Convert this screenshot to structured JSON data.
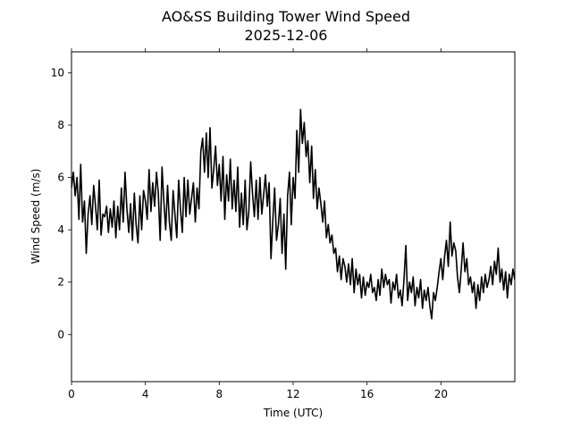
{
  "chart_data": {
    "type": "line",
    "title": "AO&SS Building Tower Wind Speed",
    "subtitle": "2025-12-06",
    "xlabel": "Time (UTC)",
    "ylabel": "Wind Speed (m/s)",
    "xlim": [
      0,
      24
    ],
    "ylim": [
      -1.8,
      10.8
    ],
    "x_ticks": [
      0,
      4,
      8,
      12,
      16,
      20
    ],
    "x_tick_labels": [
      "0",
      "4",
      "8",
      "12",
      "16",
      "20"
    ],
    "y_ticks": [
      0,
      2,
      4,
      6,
      8,
      10
    ],
    "y_tick_labels": [
      "0",
      "2",
      "4",
      "6",
      "8",
      "10"
    ],
    "grid": false,
    "legend": "none",
    "line_color": "#000000",
    "series": [
      {
        "x": [
          0.0,
          0.1,
          0.2,
          0.3,
          0.4,
          0.5,
          0.6,
          0.7,
          0.8,
          0.9,
          1.0,
          1.1,
          1.2,
          1.3,
          1.4,
          1.5,
          1.6,
          1.7,
          1.8,
          1.9,
          2.0,
          2.1,
          2.2,
          2.3,
          2.4,
          2.5,
          2.6,
          2.7,
          2.8,
          2.9,
          3.0,
          3.1,
          3.2,
          3.3,
          3.4,
          3.5,
          3.6,
          3.7,
          3.8,
          3.9,
          4.0,
          4.1,
          4.2,
          4.3,
          4.4,
          4.5,
          4.6,
          4.7,
          4.8,
          4.9,
          5.0,
          5.1,
          5.2,
          5.3,
          5.4,
          5.5,
          5.6,
          5.7,
          5.8,
          5.9,
          6.0,
          6.1,
          6.2,
          6.3,
          6.4,
          6.5,
          6.6,
          6.7,
          6.8,
          6.9,
          7.0,
          7.1,
          7.2,
          7.3,
          7.4,
          7.5,
          7.6,
          7.7,
          7.8,
          7.9,
          8.0,
          8.1,
          8.2,
          8.3,
          8.4,
          8.5,
          8.6,
          8.7,
          8.8,
          8.9,
          9.0,
          9.1,
          9.2,
          9.3,
          9.4,
          9.5,
          9.6,
          9.7,
          9.8,
          9.9,
          10.0,
          10.1,
          10.2,
          10.3,
          10.4,
          10.5,
          10.6,
          10.7,
          10.8,
          10.9,
          11.0,
          11.1,
          11.2,
          11.3,
          11.4,
          11.5,
          11.6,
          11.7,
          11.8,
          11.9,
          12.0,
          12.1,
          12.2,
          12.3,
          12.4,
          12.5,
          12.6,
          12.7,
          12.8,
          12.9,
          13.0,
          13.1,
          13.2,
          13.3,
          13.4,
          13.5,
          13.6,
          13.7,
          13.8,
          13.9,
          14.0,
          14.1,
          14.2,
          14.3,
          14.4,
          14.5,
          14.6,
          14.7,
          14.8,
          14.9,
          15.0,
          15.1,
          15.2,
          15.3,
          15.4,
          15.5,
          15.6,
          15.7,
          15.8,
          15.9,
          16.0,
          16.1,
          16.2,
          16.3,
          16.4,
          16.5,
          16.6,
          16.7,
          16.8,
          16.9,
          17.0,
          17.1,
          17.2,
          17.3,
          17.4,
          17.5,
          17.6,
          17.7,
          17.8,
          17.9,
          18.0,
          18.1,
          18.2,
          18.3,
          18.4,
          18.5,
          18.6,
          18.7,
          18.8,
          18.9,
          19.0,
          19.1,
          19.2,
          19.3,
          19.4,
          19.5,
          19.6,
          19.7,
          19.8,
          19.9,
          20.0,
          20.1,
          20.2,
          20.3,
          20.4,
          20.5,
          20.6,
          20.7,
          20.8,
          20.9,
          21.0,
          21.1,
          21.2,
          21.3,
          21.4,
          21.5,
          21.6,
          21.7,
          21.8,
          21.9,
          22.0,
          22.1,
          22.2,
          22.3,
          22.4,
          22.5,
          22.6,
          22.7,
          22.8,
          22.9,
          23.0,
          23.1,
          23.2,
          23.3,
          23.4,
          23.5,
          23.6,
          23.7,
          23.8,
          23.9,
          24.0
        ],
        "y": [
          5.6,
          6.2,
          5.3,
          6.0,
          4.4,
          6.5,
          4.3,
          5.1,
          3.1,
          4.6,
          5.3,
          4.2,
          5.7,
          4.9,
          4.0,
          5.9,
          3.8,
          4.6,
          4.5,
          4.9,
          3.9,
          4.8,
          4.1,
          5.1,
          3.7,
          4.9,
          4.0,
          5.6,
          4.3,
          6.2,
          4.8,
          3.9,
          5.0,
          3.6,
          5.4,
          4.2,
          3.5,
          5.3,
          4.0,
          5.5,
          5.1,
          4.4,
          6.3,
          4.7,
          5.8,
          4.9,
          6.2,
          5.4,
          3.6,
          6.4,
          5.1,
          4.0,
          5.7,
          4.3,
          3.6,
          5.5,
          4.6,
          3.7,
          5.9,
          4.8,
          3.9,
          6.0,
          4.5,
          5.9,
          4.6,
          5.2,
          5.8,
          4.3,
          5.6,
          4.8,
          7.0,
          7.5,
          6.2,
          7.7,
          6.0,
          7.9,
          5.6,
          6.3,
          7.2,
          5.7,
          6.5,
          5.1,
          6.8,
          4.4,
          6.1,
          5.1,
          6.7,
          4.8,
          5.9,
          4.7,
          6.4,
          4.1,
          5.4,
          4.2,
          5.9,
          4.0,
          4.7,
          6.6,
          5.4,
          4.5,
          5.9,
          4.4,
          6.0,
          4.6,
          5.3,
          6.1,
          4.9,
          5.8,
          2.9,
          4.4,
          5.6,
          3.6,
          4.2,
          5.2,
          3.1,
          4.6,
          2.5,
          5.3,
          6.2,
          4.2,
          6.0,
          5.2,
          7.8,
          6.2,
          8.6,
          7.3,
          8.1,
          6.8,
          7.4,
          5.8,
          7.2,
          5.2,
          6.3,
          4.8,
          5.6,
          5.0,
          4.3,
          5.1,
          3.7,
          4.2,
          3.5,
          3.8,
          3.1,
          3.3,
          2.4,
          3.0,
          2.1,
          2.9,
          2.6,
          2.0,
          2.7,
          1.9,
          2.9,
          1.6,
          2.5,
          1.9,
          2.3,
          1.4,
          2.2,
          1.5,
          2.0,
          1.8,
          2.3,
          1.6,
          1.8,
          1.3,
          2.1,
          1.5,
          2.5,
          1.8,
          2.3,
          1.9,
          2.1,
          1.2,
          2.0,
          1.7,
          2.3,
          1.4,
          1.7,
          1.1,
          2.1,
          3.4,
          1.3,
          2.0,
          1.6,
          2.2,
          1.1,
          1.8,
          1.4,
          2.1,
          1.0,
          1.7,
          1.3,
          1.8,
          1.1,
          0.6,
          1.6,
          1.3,
          1.8,
          2.4,
          2.9,
          2.1,
          3.0,
          3.6,
          2.6,
          4.3,
          3.0,
          3.5,
          3.2,
          2.2,
          1.6,
          2.5,
          3.5,
          2.4,
          2.9,
          1.9,
          2.2,
          1.6,
          2.0,
          1.0,
          1.9,
          1.3,
          2.2,
          1.6,
          2.3,
          1.8,
          2.1,
          2.6,
          1.9,
          2.8,
          2.3,
          3.3,
          2.0,
          2.5,
          1.7,
          2.4,
          1.4,
          2.3,
          1.9,
          2.5,
          2.1
        ]
      }
    ]
  }
}
